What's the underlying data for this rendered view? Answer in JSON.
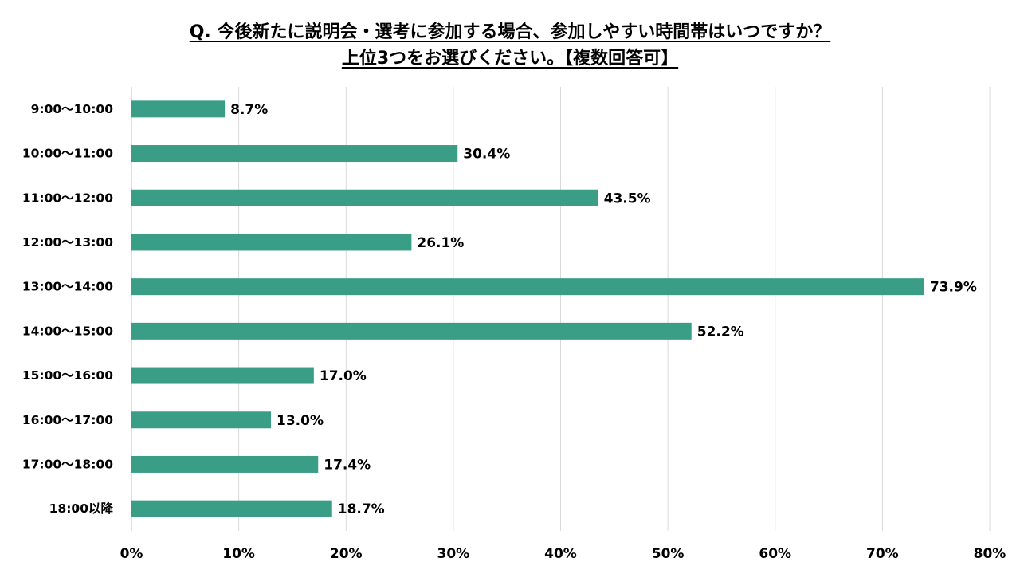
{
  "chart_data": {
    "type": "bar",
    "orientation": "horizontal",
    "title": "Q. 今後新たに説明会・選考に参加する場合、参加しやすい時間帯はいつですか？",
    "subtitle": "上位3つをお選びください。【複数回答可】",
    "categories": [
      "9:00〜10:00",
      "10:00〜11:00",
      "11:00〜12:00",
      "12:00〜13:00",
      "13:00〜14:00",
      "14:00〜15:00",
      "15:00〜16:00",
      "16:00〜17:00",
      "17:00〜18:00",
      "18:00以降"
    ],
    "values": [
      8.7,
      30.4,
      43.5,
      26.1,
      73.9,
      52.2,
      17.0,
      13.0,
      17.4,
      18.7
    ],
    "value_labels": [
      "8.7%",
      "30.4%",
      "43.5%",
      "26.1%",
      "73.9%",
      "52.2%",
      "17.0%",
      "13.0%",
      "17.4%",
      "18.7%"
    ],
    "xlim": [
      0,
      80
    ],
    "x_ticks": [
      "0%",
      "10%",
      "20%",
      "30%",
      "40%",
      "50%",
      "60%",
      "70%",
      "80%"
    ],
    "grid": true,
    "colors": {
      "bar": "#3a9e87",
      "grid": "#d9d9d9",
      "axis": "#bfbfbf"
    }
  }
}
